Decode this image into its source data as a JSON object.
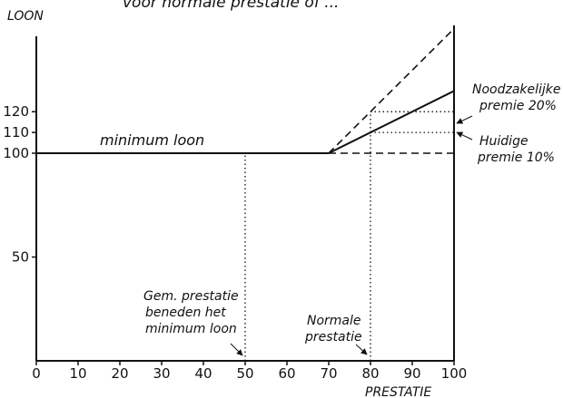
{
  "chart_data": {
    "type": "line",
    "title_fragment": "voor normale prestatie of ...",
    "xlabel": "PRESTATIE",
    "ylabel": "LOON",
    "xlim": [
      0,
      100
    ],
    "ylim": [
      0,
      150
    ],
    "x_ticks": [
      0,
      10,
      20,
      30,
      40,
      50,
      60,
      70,
      80,
      90,
      100
    ],
    "y_ticks": [
      50,
      100,
      110,
      120
    ],
    "series": [
      {
        "name": "minimum loon",
        "style": "solid",
        "x": [
          0,
          70
        ],
        "y": [
          100,
          100
        ]
      },
      {
        "name": "Huidige premie 10%",
        "style": "solid",
        "x": [
          70,
          100
        ],
        "y": [
          100,
          130
        ]
      },
      {
        "name": "Noodzakelijke premie 20%",
        "style": "dashed",
        "x": [
          70,
          100
        ],
        "y": [
          100,
          160
        ]
      },
      {
        "style": "dashed",
        "x": [
          70,
          100
        ],
        "y": [
          100,
          100
        ]
      }
    ],
    "reference_lines": [
      {
        "style": "dotted",
        "x": [
          50,
          50
        ],
        "y": [
          0,
          100
        ]
      },
      {
        "style": "dotted",
        "x": [
          80,
          80
        ],
        "y": [
          0,
          120
        ]
      },
      {
        "style": "dotted",
        "x": [
          80,
          100
        ],
        "y": [
          120,
          120
        ]
      },
      {
        "style": "dotted",
        "x": [
          80,
          100
        ],
        "y": [
          110,
          110
        ]
      }
    ],
    "annotations": {
      "minimum": "minimum loon",
      "noodzakelijke_1": "Noodzakelijke",
      "noodzakelijke_2": "premie 20%",
      "huidige_1": "Huidige",
      "huidige_2": "premie 10%",
      "gem_1": "Gem. prestatie",
      "gem_2": "beneden het",
      "gem_3": "minimum loon",
      "normale_1": "Normale",
      "normale_2": "prestatie"
    }
  }
}
